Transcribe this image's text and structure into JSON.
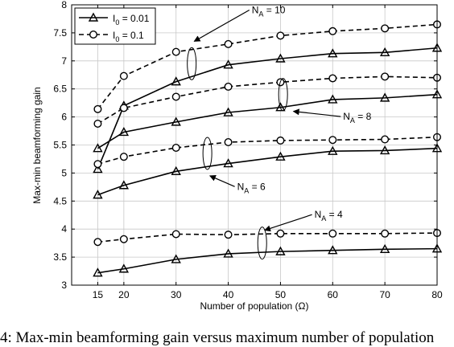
{
  "chart_data": {
    "type": "line",
    "title": "",
    "xlabel": "Number of population (Ω)",
    "ylabel": "Max-min beamforming gain",
    "x": [
      15,
      20,
      30,
      40,
      50,
      60,
      70,
      80
    ],
    "xticks": [
      15,
      20,
      30,
      40,
      50,
      60,
      70,
      80
    ],
    "xlim": [
      10,
      80
    ],
    "ylim": [
      3,
      8
    ],
    "yticks": [
      3,
      3.5,
      4,
      4.5,
      5,
      5.5,
      6,
      6.5,
      7,
      7.5,
      8
    ],
    "grid": true,
    "legend_position": "top-left",
    "legend": [
      {
        "label": "I0 = 0.01",
        "label_main": "I",
        "label_sub": "0",
        "label_rest": " = 0.01",
        "style": "solid",
        "marker": "triangle"
      },
      {
        "label": "I0 = 0.1",
        "label_main": "I",
        "label_sub": "0",
        "label_rest": " = 0.1",
        "style": "dashed",
        "marker": "circle"
      }
    ],
    "series": [
      {
        "group": "NA = 10",
        "style": "solid",
        "marker": "triangle",
        "values": [
          5.07,
          6.2,
          6.63,
          6.93,
          7.04,
          7.13,
          7.15,
          7.23
        ]
      },
      {
        "group": "NA = 10",
        "style": "dashed",
        "marker": "circle",
        "values": [
          6.14,
          6.73,
          7.16,
          7.3,
          7.45,
          7.53,
          7.58,
          7.65
        ]
      },
      {
        "group": "NA = 8",
        "style": "solid",
        "marker": "triangle",
        "values": [
          5.44,
          5.73,
          5.91,
          6.08,
          6.17,
          6.31,
          6.34,
          6.4
        ]
      },
      {
        "group": "NA = 8",
        "style": "dashed",
        "marker": "circle",
        "values": [
          5.88,
          6.16,
          6.36,
          6.54,
          6.62,
          6.69,
          6.72,
          6.7
        ]
      },
      {
        "group": "NA = 6",
        "style": "solid",
        "marker": "triangle",
        "values": [
          4.61,
          4.78,
          5.03,
          5.17,
          5.29,
          5.39,
          5.4,
          5.44
        ]
      },
      {
        "group": "NA = 6",
        "style": "dashed",
        "marker": "circle",
        "values": [
          5.16,
          5.29,
          5.45,
          5.55,
          5.58,
          5.59,
          5.6,
          5.64
        ]
      },
      {
        "group": "NA = 4",
        "style": "solid",
        "marker": "triangle",
        "values": [
          3.22,
          3.29,
          3.46,
          3.56,
          3.6,
          3.62,
          3.64,
          3.65
        ]
      },
      {
        "group": "NA = 4",
        "style": "dashed",
        "marker": "circle",
        "values": [
          3.77,
          3.82,
          3.91,
          3.9,
          3.92,
          3.92,
          3.92,
          3.93
        ]
      }
    ],
    "annotations": [
      {
        "label": "NA = 10",
        "main": "N",
        "sub": "A",
        "rest": " = 10",
        "ellipse_at": {
          "x": 33,
          "y": 6.95
        },
        "text_at": {
          "x": 44.5,
          "y": 7.85
        },
        "arrow_to": {
          "x": 33.5,
          "y": 7.35
        }
      },
      {
        "label": "NA = 8",
        "main": "N",
        "sub": "A",
        "rest": " = 8",
        "ellipse_at": {
          "x": 50.5,
          "y": 6.4
        },
        "text_at": {
          "x": 62,
          "y": 5.95
        },
        "arrow_to": {
          "x": 52.5,
          "y": 6.1
        }
      },
      {
        "label": "NA = 6",
        "main": "N",
        "sub": "A",
        "rest": " = 6",
        "ellipse_at": {
          "x": 36,
          "y": 5.35
        },
        "text_at": {
          "x": 41.7,
          "y": 4.7
        },
        "arrow_to": {
          "x": 36.5,
          "y": 4.95
        }
      },
      {
        "label": "NA = 4",
        "main": "N",
        "sub": "A",
        "rest": " = 4",
        "ellipse_at": {
          "x": 46.5,
          "y": 3.75
        },
        "text_at": {
          "x": 56.5,
          "y": 4.2
        },
        "arrow_to": {
          "x": 47,
          "y": 3.98
        }
      }
    ]
  },
  "caption": "4: Max-min beamforming gain versus maximum number of population"
}
